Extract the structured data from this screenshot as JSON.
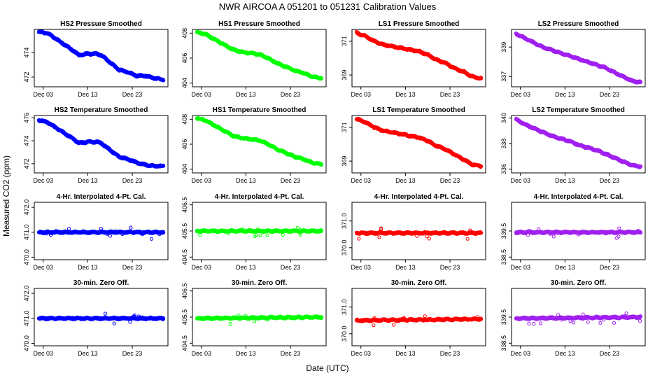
{
  "figure": {
    "title": "NWR   AIRCOA A   051201 to 051231   Calibration Values",
    "xlabel": "Date (UTC)",
    "ylabel": "Measured CO2 (ppm)",
    "colors": {
      "HS2": "#0000ff",
      "HS1": "#00ff00",
      "LS1": "#ff0000",
      "LS2": "#a020f0"
    }
  },
  "chart_data": [
    {
      "type": "scatter",
      "title": "HS2 Pressure Smoothed",
      "series": "HS2",
      "xlim": [
        1,
        31
      ],
      "ylim": [
        471.2,
        475.9
      ],
      "x_ticks": [
        {
          "value": 3,
          "label": "Dec 03"
        },
        {
          "value": 13,
          "label": "Dec 13"
        },
        {
          "value": 23,
          "label": "Dec 23"
        }
      ],
      "y_ticks": [
        {
          "value": 472,
          "label": "472"
        },
        {
          "value": 474,
          "label": "474"
        }
      ],
      "trend": [
        [
          2,
          475.7
        ],
        [
          4,
          475.6
        ],
        [
          6,
          475.1
        ],
        [
          8,
          474.6
        ],
        [
          10,
          474.1
        ],
        [
          11,
          473.8
        ],
        [
          13,
          473.9
        ],
        [
          15,
          473.9
        ],
        [
          16,
          473.8
        ],
        [
          18,
          473.2
        ],
        [
          20,
          472.6
        ],
        [
          22,
          472.4
        ],
        [
          24,
          472.1
        ],
        [
          26,
          472.1
        ],
        [
          28,
          471.9
        ],
        [
          30,
          471.8
        ]
      ]
    },
    {
      "type": "scatter",
      "title": "HS1 Pressure Smoothed",
      "series": "HS1",
      "xlim": [
        1,
        31
      ],
      "ylim": [
        403.7,
        408.3
      ],
      "x_ticks": [
        {
          "value": 3,
          "label": "Dec 03"
        },
        {
          "value": 13,
          "label": "Dec 13"
        },
        {
          "value": 23,
          "label": "Dec 23"
        }
      ],
      "y_ticks": [
        {
          "value": 404,
          "label": "404"
        },
        {
          "value": 406,
          "label": "406"
        },
        {
          "value": 408,
          "label": "408"
        }
      ],
      "trend": [
        [
          2,
          408.1
        ],
        [
          4,
          407.9
        ],
        [
          6,
          407.5
        ],
        [
          8,
          407.1
        ],
        [
          10,
          406.7
        ],
        [
          12,
          406.5
        ],
        [
          14,
          406.4
        ],
        [
          16,
          406.3
        ],
        [
          18,
          406.0
        ],
        [
          20,
          405.6
        ],
        [
          22,
          405.3
        ],
        [
          24,
          405.0
        ],
        [
          26,
          404.8
        ],
        [
          28,
          404.5
        ],
        [
          30,
          404.4
        ]
      ]
    },
    {
      "type": "scatter",
      "title": "LS1 Pressure Smoothed",
      "series": "LS1",
      "xlim": [
        1,
        31
      ],
      "ylim": [
        368.3,
        371.7
      ],
      "x_ticks": [
        {
          "value": 3,
          "label": "Dec 03"
        },
        {
          "value": 13,
          "label": "Dec 13"
        },
        {
          "value": 23,
          "label": "Dec 23"
        }
      ],
      "y_ticks": [
        {
          "value": 369,
          "label": "369"
        },
        {
          "value": 371,
          "label": "371"
        }
      ],
      "trend": [
        [
          2,
          371.5
        ],
        [
          4,
          371.3
        ],
        [
          6,
          371.0
        ],
        [
          8,
          370.8
        ],
        [
          10,
          370.7
        ],
        [
          12,
          370.6
        ],
        [
          14,
          370.5
        ],
        [
          16,
          370.4
        ],
        [
          18,
          370.2
        ],
        [
          20,
          369.9
        ],
        [
          22,
          369.7
        ],
        [
          24,
          369.4
        ],
        [
          26,
          369.2
        ],
        [
          28,
          368.9
        ],
        [
          30,
          368.8
        ]
      ]
    },
    {
      "type": "scatter",
      "title": "LS2 Pressure Smoothed",
      "series": "LS2",
      "xlim": [
        1,
        31
      ],
      "ylim": [
        336.3,
        340.2
      ],
      "x_ticks": [
        {
          "value": 3,
          "label": "Dec 03"
        },
        {
          "value": 13,
          "label": "Dec 13"
        },
        {
          "value": 23,
          "label": "Dec 23"
        }
      ],
      "y_ticks": [
        {
          "value": 337,
          "label": "337"
        },
        {
          "value": 339,
          "label": "339"
        }
      ],
      "trend": [
        [
          2,
          339.9
        ],
        [
          4,
          339.6
        ],
        [
          6,
          339.3
        ],
        [
          8,
          339.0
        ],
        [
          10,
          338.8
        ],
        [
          12,
          338.6
        ],
        [
          14,
          338.4
        ],
        [
          16,
          338.2
        ],
        [
          18,
          338.0
        ],
        [
          20,
          337.8
        ],
        [
          22,
          337.6
        ],
        [
          24,
          337.3
        ],
        [
          26,
          337.0
        ],
        [
          28,
          336.7
        ],
        [
          30,
          336.6
        ]
      ]
    },
    {
      "type": "scatter",
      "title": "HS2 Temperature Smoothed",
      "series": "HS2",
      "xlim": [
        1,
        31
      ],
      "ylim": [
        471.2,
        476.2
      ],
      "x_ticks": [
        {
          "value": 3,
          "label": "Dec 03"
        },
        {
          "value": 13,
          "label": "Dec 13"
        },
        {
          "value": 23,
          "label": "Dec 23"
        }
      ],
      "y_ticks": [
        {
          "value": 472,
          "label": "472"
        },
        {
          "value": 474,
          "label": "474"
        },
        {
          "value": 476,
          "label": "476"
        }
      ],
      "trend": [
        [
          2,
          475.8
        ],
        [
          4,
          475.6
        ],
        [
          6,
          475.1
        ],
        [
          8,
          474.6
        ],
        [
          10,
          474.1
        ],
        [
          11,
          473.8
        ],
        [
          13,
          473.9
        ],
        [
          15,
          473.9
        ],
        [
          16,
          473.8
        ],
        [
          18,
          473.2
        ],
        [
          20,
          472.6
        ],
        [
          22,
          472.4
        ],
        [
          24,
          472.1
        ],
        [
          26,
          471.9
        ],
        [
          28,
          471.8
        ],
        [
          30,
          471.8
        ]
      ]
    },
    {
      "type": "scatter",
      "title": "HS1 Temperature Smoothed",
      "series": "HS1",
      "xlim": [
        1,
        31
      ],
      "ylim": [
        403.7,
        408.3
      ],
      "x_ticks": [
        {
          "value": 3,
          "label": "Dec 03"
        },
        {
          "value": 13,
          "label": "Dec 13"
        },
        {
          "value": 23,
          "label": "Dec 23"
        }
      ],
      "y_ticks": [
        {
          "value": 404,
          "label": "404"
        },
        {
          "value": 406,
          "label": "406"
        },
        {
          "value": 408,
          "label": "408"
        }
      ],
      "trend": [
        [
          2,
          408.1
        ],
        [
          4,
          407.9
        ],
        [
          6,
          407.5
        ],
        [
          8,
          407.1
        ],
        [
          10,
          406.7
        ],
        [
          12,
          406.5
        ],
        [
          14,
          406.4
        ],
        [
          16,
          406.3
        ],
        [
          18,
          406.0
        ],
        [
          20,
          405.6
        ],
        [
          22,
          405.3
        ],
        [
          24,
          405.0
        ],
        [
          26,
          404.8
        ],
        [
          28,
          404.5
        ],
        [
          30,
          404.4
        ]
      ]
    },
    {
      "type": "scatter",
      "title": "LS1 Temperature Smoothed",
      "series": "LS1",
      "xlim": [
        1,
        31
      ],
      "ylim": [
        368.3,
        371.7
      ],
      "x_ticks": [
        {
          "value": 3,
          "label": "Dec 03"
        },
        {
          "value": 13,
          "label": "Dec 13"
        },
        {
          "value": 23,
          "label": "Dec 23"
        }
      ],
      "y_ticks": [
        {
          "value": 369,
          "label": "369"
        },
        {
          "value": 371,
          "label": "371"
        }
      ],
      "trend": [
        [
          2,
          371.5
        ],
        [
          4,
          371.3
        ],
        [
          6,
          371.0
        ],
        [
          8,
          370.8
        ],
        [
          10,
          370.7
        ],
        [
          12,
          370.6
        ],
        [
          14,
          370.5
        ],
        [
          16,
          370.4
        ],
        [
          18,
          370.2
        ],
        [
          20,
          369.9
        ],
        [
          22,
          369.7
        ],
        [
          24,
          369.4
        ],
        [
          26,
          369.1
        ],
        [
          28,
          368.8
        ],
        [
          30,
          368.7
        ]
      ]
    },
    {
      "type": "scatter",
      "title": "LS2 Temperature Smoothed",
      "series": "LS2",
      "xlim": [
        1,
        31
      ],
      "ylim": [
        335.7,
        340.2
      ],
      "x_ticks": [
        {
          "value": 3,
          "label": "Dec 03"
        },
        {
          "value": 13,
          "label": "Dec 13"
        },
        {
          "value": 23,
          "label": "Dec 23"
        }
      ],
      "y_ticks": [
        {
          "value": 336,
          "label": "336"
        },
        {
          "value": 338,
          "label": "338"
        },
        {
          "value": 340,
          "label": "340"
        }
      ],
      "trend": [
        [
          2,
          339.9
        ],
        [
          4,
          339.5
        ],
        [
          6,
          339.2
        ],
        [
          8,
          338.9
        ],
        [
          10,
          338.6
        ],
        [
          12,
          338.4
        ],
        [
          14,
          338.2
        ],
        [
          16,
          337.9
        ],
        [
          18,
          337.7
        ],
        [
          20,
          337.5
        ],
        [
          22,
          337.2
        ],
        [
          24,
          336.9
        ],
        [
          26,
          336.6
        ],
        [
          28,
          336.3
        ],
        [
          30,
          336.2
        ]
      ]
    },
    {
      "type": "scatter",
      "title": "4-Hr. Interpolated 4-Pt. Cal.",
      "series": "HS2",
      "xlim": [
        1,
        31
      ],
      "ylim": [
        469.9,
        472.2
      ],
      "x_ticks": [
        {
          "value": 3,
          "label": "Dec 03"
        },
        {
          "value": 13,
          "label": "Dec 13"
        },
        {
          "value": 23,
          "label": "Dec 23"
        }
      ],
      "y_ticks": [
        {
          "value": 470.0,
          "label": "470.0"
        },
        {
          "value": 471.0,
          "label": "471.0"
        },
        {
          "value": 472.0,
          "label": "472.0"
        }
      ],
      "trend": [
        [
          2,
          471.0
        ],
        [
          30,
          471.0
        ]
      ]
    },
    {
      "type": "scatter",
      "title": "4-Hr. Interpolated 4-Pt. Cal.",
      "series": "HS1",
      "xlim": [
        1,
        31
      ],
      "ylim": [
        404.4,
        406.6
      ],
      "x_ticks": [
        {
          "value": 3,
          "label": "Dec 03"
        },
        {
          "value": 13,
          "label": "Dec 13"
        },
        {
          "value": 23,
          "label": "Dec 23"
        }
      ],
      "y_ticks": [
        {
          "value": 404.5,
          "label": "404.5"
        },
        {
          "value": 405.5,
          "label": "405.5"
        },
        {
          "value": 406.5,
          "label": "406.5"
        }
      ],
      "trend": [
        [
          2,
          405.5
        ],
        [
          30,
          405.5
        ]
      ]
    },
    {
      "type": "scatter",
      "title": "4-Hr. Interpolated 4-Pt. Cal.",
      "series": "LS1",
      "xlim": [
        1,
        31
      ],
      "ylim": [
        369.55,
        371.7
      ],
      "x_ticks": [
        {
          "value": 3,
          "label": "Dec 03"
        },
        {
          "value": 13,
          "label": "Dec 13"
        },
        {
          "value": 23,
          "label": "Dec 23"
        }
      ],
      "y_ticks": [
        {
          "value": 370.0,
          "label": "370.0"
        },
        {
          "value": 371.0,
          "label": "371.0"
        }
      ],
      "trend": [
        [
          2,
          370.55
        ],
        [
          30,
          370.55
        ]
      ]
    },
    {
      "type": "scatter",
      "title": "4-Hr. Interpolated 4-Pt. Cal.",
      "series": "LS2",
      "xlim": [
        1,
        31
      ],
      "ylim": [
        338.4,
        340.6
      ],
      "x_ticks": [
        {
          "value": 3,
          "label": "Dec 03"
        },
        {
          "value": 13,
          "label": "Dec 13"
        },
        {
          "value": 23,
          "label": "Dec 23"
        }
      ],
      "y_ticks": [
        {
          "value": 338.5,
          "label": "338.5"
        },
        {
          "value": 339.5,
          "label": "339.5"
        }
      ],
      "trend": [
        [
          2,
          339.45
        ],
        [
          30,
          339.45
        ]
      ]
    },
    {
      "type": "scatter",
      "title": "30-min. Zero Off.",
      "series": "HS2",
      "xlim": [
        1,
        31
      ],
      "ylim": [
        469.9,
        472.2
      ],
      "x_ticks": [
        {
          "value": 3,
          "label": "Dec 03"
        },
        {
          "value": 13,
          "label": "Dec 13"
        },
        {
          "value": 23,
          "label": "Dec 23"
        }
      ],
      "y_ticks": [
        {
          "value": 470.0,
          "label": "470.0"
        },
        {
          "value": 471.0,
          "label": "471.0"
        },
        {
          "value": 472.0,
          "label": "472.0"
        }
      ],
      "trend": [
        [
          2,
          471.0
        ],
        [
          30,
          471.0
        ]
      ]
    },
    {
      "type": "scatter",
      "title": "30-min. Zero Off.",
      "series": "HS1",
      "xlim": [
        1,
        31
      ],
      "ylim": [
        404.4,
        406.6
      ],
      "x_ticks": [
        {
          "value": 3,
          "label": "Dec 03"
        },
        {
          "value": 13,
          "label": "Dec 13"
        },
        {
          "value": 23,
          "label": "Dec 23"
        }
      ],
      "y_ticks": [
        {
          "value": 404.5,
          "label": "404.5"
        },
        {
          "value": 405.5,
          "label": "405.5"
        },
        {
          "value": 406.5,
          "label": "406.5"
        }
      ],
      "trend": [
        [
          2,
          405.45
        ],
        [
          30,
          405.5
        ]
      ]
    },
    {
      "type": "scatter",
      "title": "30-min. Zero Off.",
      "series": "LS1",
      "xlim": [
        1,
        31
      ],
      "ylim": [
        369.55,
        371.7
      ],
      "x_ticks": [
        {
          "value": 3,
          "label": "Dec 03"
        },
        {
          "value": 13,
          "label": "Dec 13"
        },
        {
          "value": 23,
          "label": "Dec 23"
        }
      ],
      "y_ticks": [
        {
          "value": 370.0,
          "label": "370.0"
        },
        {
          "value": 371.0,
          "label": "371.0"
        }
      ],
      "trend": [
        [
          2,
          370.5
        ],
        [
          30,
          370.55
        ]
      ]
    },
    {
      "type": "scatter",
      "title": "30-min. Zero Off.",
      "series": "LS2",
      "xlim": [
        1,
        31
      ],
      "ylim": [
        338.4,
        340.6
      ],
      "x_ticks": [
        {
          "value": 3,
          "label": "Dec 03"
        },
        {
          "value": 13,
          "label": "Dec 13"
        },
        {
          "value": 23,
          "label": "Dec 23"
        }
      ],
      "y_ticks": [
        {
          "value": 338.5,
          "label": "338.5"
        },
        {
          "value": 339.5,
          "label": "339.5"
        }
      ],
      "trend": [
        [
          2,
          339.45
        ],
        [
          30,
          339.5
        ]
      ]
    }
  ]
}
